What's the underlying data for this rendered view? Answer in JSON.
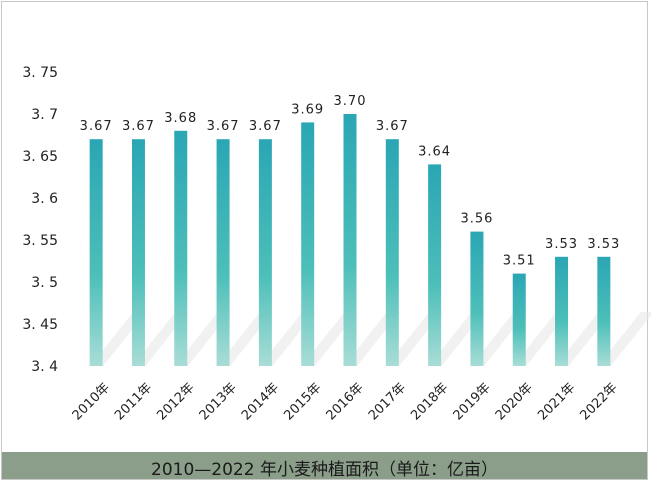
{
  "caption": "2010—2022 年小麦种植面积（单位：亿亩）",
  "chart_data": {
    "type": "bar",
    "title": "",
    "xlabel": "",
    "ylabel": "",
    "categories": [
      "2010年",
      "2011年",
      "2012年",
      "2013年",
      "2014年",
      "2015年",
      "2016年",
      "2017年",
      "2018年",
      "2019年",
      "2020年",
      "2021年",
      "2022年"
    ],
    "values": [
      3.67,
      3.67,
      3.68,
      3.67,
      3.67,
      3.69,
      3.7,
      3.67,
      3.64,
      3.56,
      3.51,
      3.53,
      3.53
    ],
    "data_labels": [
      "3.67",
      "3.67",
      "3.68",
      "3.67",
      "3.67",
      "3.69",
      "3.70",
      "3.67",
      "3.64",
      "3.56",
      "3.51",
      "3.53",
      "3.53"
    ],
    "ylim": [
      3.4,
      3.75
    ],
    "yticks": [
      3.4,
      3.45,
      3.5,
      3.55,
      3.6,
      3.65,
      3.7,
      3.75
    ],
    "ytick_labels": [
      "3. 4",
      "3. 45",
      "3. 5",
      "3. 55",
      "3. 6",
      "3. 65",
      "3. 7",
      "3. 75"
    ],
    "grid": false,
    "legend": "none",
    "bar_color_top": "#2aa6b4",
    "bar_color_bottom": "#a8ddd6",
    "shadow_color": "#e6e6e6"
  }
}
